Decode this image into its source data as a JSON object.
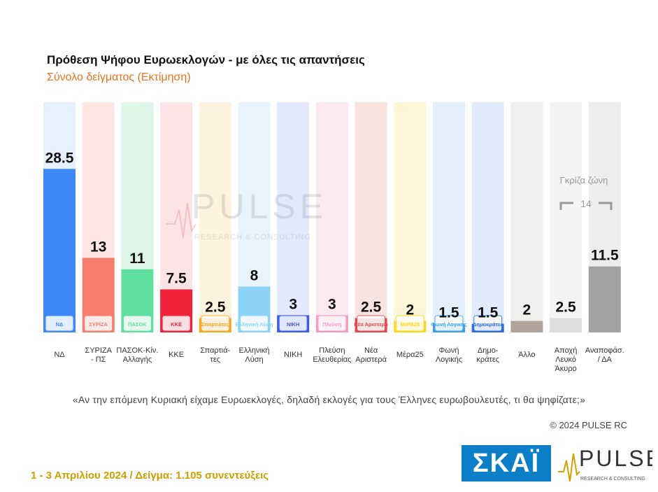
{
  "title": "Πρόθεση Ψήφου Ευρωεκλογών - με όλες τις απαντήσεις",
  "subtitle": "Σύνολο δείγματος   (Εκτίμηση)",
  "question": "«Αν την επόμενη Κυριακή είχαμε Ευρωεκλογές, δηλαδή εκλογές για τους Έλληνες ευρωβουλευτές, τι θα ψηφίζατε;»",
  "copyright": "© 2024 PULSE RC",
  "footer": "1 - 3  Απριλίου 2024  /  Δείγμα:  1.105 συνεντεύξεις",
  "logo_skai": "ΣΚΑΪ",
  "logo_pulse": "PULSE",
  "logo_pulse_sub": "RESEARCH & CONSULTING",
  "watermark": "PULSE",
  "watermark_sub": "RESEARCH & CONSULTING",
  "colors": {
    "accent": "#e8731f",
    "footer": "#c9a000",
    "skai": "#0a7fc8"
  },
  "chart_data": {
    "type": "bar",
    "categories": [
      [
        "ΝΔ"
      ],
      [
        "ΣΥΡΙΖΑ",
        "- ΠΣ"
      ],
      [
        "ΠΑΣΟΚ-Κίν.",
        "Αλλαγής"
      ],
      [
        "ΚΚΕ"
      ],
      [
        "Σπαρτιά-",
        "τες"
      ],
      [
        "Ελληνική",
        "Λύση"
      ],
      [
        "ΝΙΚΗ"
      ],
      [
        "Πλεύση",
        "Ελευθερίας"
      ],
      [
        "Νέα",
        "Αριστερά"
      ],
      [
        "Μέρα25"
      ],
      [
        "Φωνή",
        "Λογικής"
      ],
      [
        "Δημο-",
        "κράτες"
      ],
      [
        "Άλλο"
      ],
      [
        "Αποχή",
        "Λευκό",
        "Άκυρο"
      ],
      [
        "Αναποφάσ.",
        "/ ΔΑ"
      ]
    ],
    "values": [
      28.5,
      13,
      11,
      7.5,
      2.5,
      8,
      3,
      3,
      2.5,
      2,
      1.5,
      1.5,
      2,
      2.5,
      11.5
    ],
    "value_labels": [
      "28.5",
      "13",
      "11",
      "7.5",
      "2.5",
      "8",
      "3",
      "3",
      "2.5",
      "2",
      "1.5",
      "1.5",
      "2",
      "2.5",
      "11.5"
    ],
    "bar_colors": [
      "#3d8af7",
      "#f47d6e",
      "#5fe0a0",
      "#f0233a",
      "#f5a623",
      "#8dd2f7",
      "#3b5ce8",
      "#f29cc0",
      "#e04a4a",
      "#ffd61c",
      "#3aa0ec",
      "#2f6be0",
      "#b3a29c",
      "#dedede",
      "#a3a3a3"
    ],
    "bg_colors": [
      "#e7f0fe",
      "#fde6e3",
      "#ddf6e8",
      "#fce3e5",
      "#fdf2dd",
      "#e8f4fc",
      "#e3e8fc",
      "#fbe8f0",
      "#f8e3e1",
      "#fff6d7",
      "#e3f0fc",
      "#e2ebfb",
      "#f1efee",
      "#f4f4f4",
      "#ededed"
    ],
    "icons": [
      "ΝΔ",
      "ΣΥΡΙΖΑ",
      "ΠΑΣΟΚ",
      "ΚΚΕ",
      "Σπαρτιάτες",
      "Ελληνική Λύση",
      "ΝΙΚΗ",
      "Πλεύση",
      "Νέα Αριστερά",
      "ΜέΡΑ25",
      "Φωνή Λογικής",
      "Δημοκράτες",
      "",
      "",
      ""
    ],
    "ylim": [
      0,
      30
    ],
    "annotation": {
      "label": "Γκρίζα ζώνη",
      "value_label": "14"
    }
  }
}
